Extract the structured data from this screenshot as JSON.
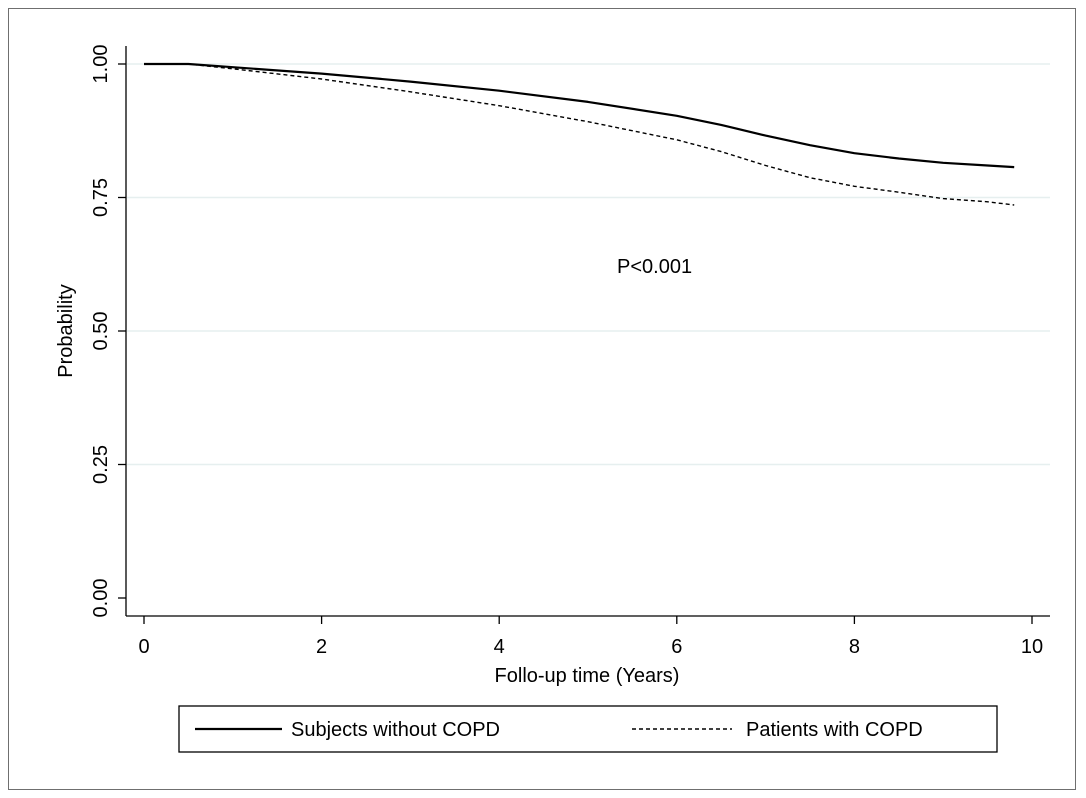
{
  "chart_data": {
    "type": "line",
    "title": "",
    "xlabel": "Follo-up time (Years)",
    "ylabel": "Probability",
    "xlim": [
      0,
      10
    ],
    "ylim": [
      0,
      1
    ],
    "x_ticks": [
      "0",
      "2",
      "4",
      "6",
      "8",
      "10"
    ],
    "y_ticks": [
      "0.00",
      "0.25",
      "0.50",
      "0.75",
      "1.00"
    ],
    "grid": "horizontal",
    "legend_position": "bottom",
    "annotation": "P<0.001",
    "series": [
      {
        "name": "Subjects without COPD",
        "line_style": "solid",
        "color": "#000000",
        "x": [
          0,
          0.5,
          1,
          2,
          3,
          4,
          5,
          6,
          6.5,
          7,
          7.5,
          8,
          8.5,
          9,
          9.5,
          9.8
        ],
        "y": [
          1.0,
          1.0,
          0.994,
          0.982,
          0.967,
          0.95,
          0.929,
          0.903,
          0.886,
          0.866,
          0.848,
          0.833,
          0.823,
          0.815,
          0.81,
          0.807
        ]
      },
      {
        "name": "Patients with COPD",
        "line_style": "dashed",
        "color": "#000000",
        "x": [
          0,
          0.5,
          1,
          2,
          3,
          4,
          5,
          6,
          6.5,
          7,
          7.5,
          8,
          8.5,
          9,
          9.5,
          9.8
        ],
        "y": [
          1.0,
          1.0,
          0.991,
          0.972,
          0.948,
          0.922,
          0.892,
          0.858,
          0.836,
          0.81,
          0.787,
          0.771,
          0.76,
          0.748,
          0.742,
          0.736
        ]
      }
    ]
  }
}
